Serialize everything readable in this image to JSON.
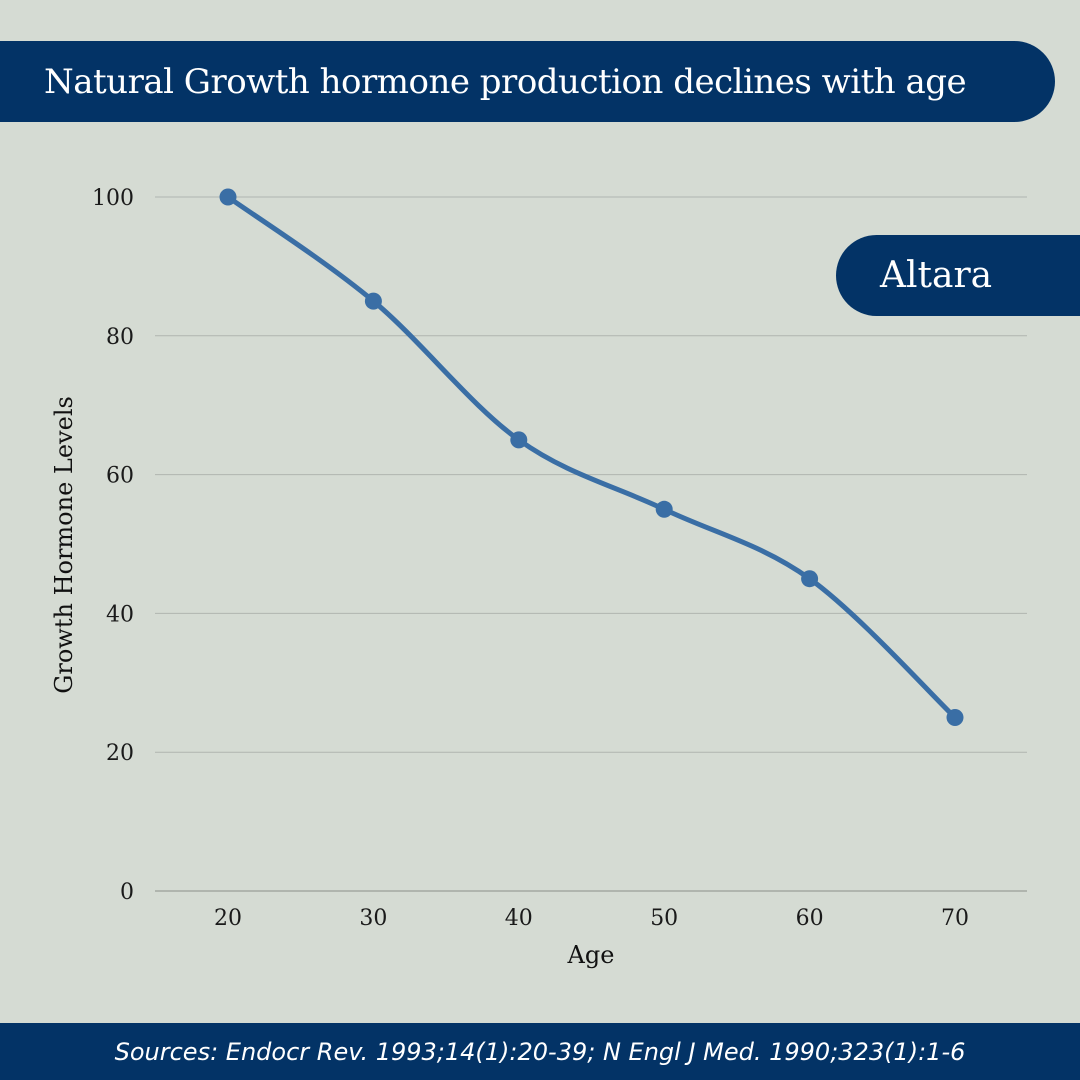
{
  "header": {
    "title": "Natural Growth hormone production declines with age"
  },
  "brand": {
    "name": "Altara"
  },
  "footer": {
    "sources": "Sources: Endocr Rev. 1993;14(1):20-39; N Engl J Med. 1990;323(1):1-6"
  },
  "colors": {
    "banner": "#033366",
    "background": "#d5dbd3",
    "line": "#3a6ea5",
    "grid": "#b0b5b0"
  },
  "chart_data": {
    "type": "line",
    "x": [
      20,
      30,
      40,
      50,
      60,
      70
    ],
    "series": [
      {
        "values": [
          100,
          85,
          65,
          55,
          45,
          25
        ]
      }
    ],
    "xlabel": "Age",
    "ylabel": "Growth Hormone Levels",
    "x_ticks": [
      20,
      30,
      40,
      50,
      60,
      70
    ],
    "y_ticks": [
      0,
      20,
      40,
      60,
      80,
      100
    ],
    "ylim": [
      0,
      100
    ],
    "grid": true,
    "smooth": true,
    "markers": true
  }
}
